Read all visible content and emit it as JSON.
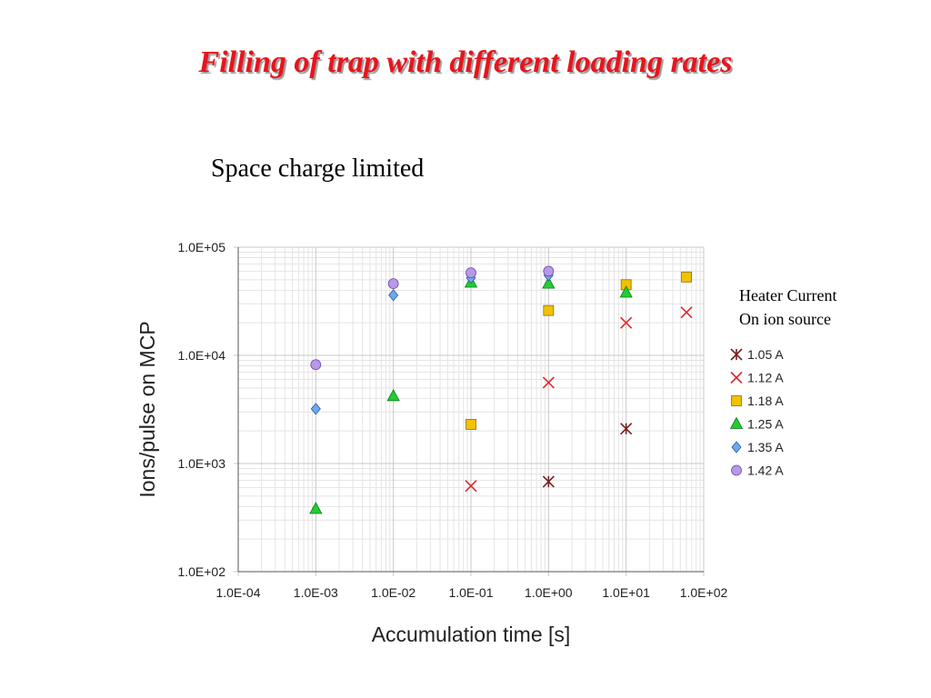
{
  "slide": {
    "title": "Filling of trap with different loading rates",
    "subtitle": "Space charge limited",
    "legend_caption_line1": "Heater Current",
    "legend_caption_line2": "On ion source"
  },
  "chart_data": {
    "type": "scatter",
    "title": "",
    "xlabel": "Accumulation time [s]",
    "ylabel": "Ions/pulse on MCP",
    "x_scale": "log",
    "y_scale": "log",
    "xlim": [
      0.0001,
      100
    ],
    "ylim": [
      100,
      100000
    ],
    "x_ticks": [
      {
        "value": 0.0001,
        "label": "1.0E-04"
      },
      {
        "value": 0.001,
        "label": "1.0E-03"
      },
      {
        "value": 0.01,
        "label": "1.0E-02"
      },
      {
        "value": 0.1,
        "label": "1.0E-01"
      },
      {
        "value": 1,
        "label": "1.0E+00"
      },
      {
        "value": 10,
        "label": "1.0E+01"
      },
      {
        "value": 100,
        "label": "1.0E+02"
      }
    ],
    "y_ticks": [
      {
        "value": 100,
        "label": "1.0E+02"
      },
      {
        "value": 1000,
        "label": "1.0E+03"
      },
      {
        "value": 10000,
        "label": "1.0E+04"
      },
      {
        "value": 100000,
        "label": "1.0E+05"
      }
    ],
    "grid": true,
    "legend_position": "right",
    "series": [
      {
        "name": "1.05 A",
        "marker": "asterisk",
        "color": "#7a1f1f",
        "points": [
          [
            1,
            680
          ],
          [
            10,
            2100
          ]
        ]
      },
      {
        "name": "1.12 A",
        "marker": "x",
        "color": "#e0282a",
        "points": [
          [
            0.1,
            620
          ],
          [
            1,
            5600
          ],
          [
            10,
            20000
          ],
          [
            60,
            25000
          ]
        ]
      },
      {
        "name": "1.18 A",
        "marker": "square",
        "color": "#f2c200",
        "points": [
          [
            0.1,
            2300
          ],
          [
            1,
            26000
          ],
          [
            10,
            45000
          ],
          [
            60,
            53000
          ]
        ]
      },
      {
        "name": "1.25 A",
        "marker": "triangle",
        "color": "#22cc33",
        "points": [
          [
            0.001,
            380
          ],
          [
            0.01,
            4200
          ],
          [
            0.1,
            47000
          ],
          [
            1,
            46000
          ],
          [
            10,
            38000
          ]
        ]
      },
      {
        "name": "1.35 A",
        "marker": "diamond",
        "color": "#6aaaf0",
        "points": [
          [
            0.001,
            3200
          ],
          [
            0.01,
            36000
          ],
          [
            0.1,
            52000
          ],
          [
            1,
            55000
          ]
        ]
      },
      {
        "name": "1.42 A",
        "marker": "circle",
        "color": "#b898e8",
        "points": [
          [
            0.001,
            8200
          ],
          [
            0.01,
            46000
          ],
          [
            0.1,
            58000
          ],
          [
            1,
            60000
          ]
        ]
      }
    ]
  }
}
